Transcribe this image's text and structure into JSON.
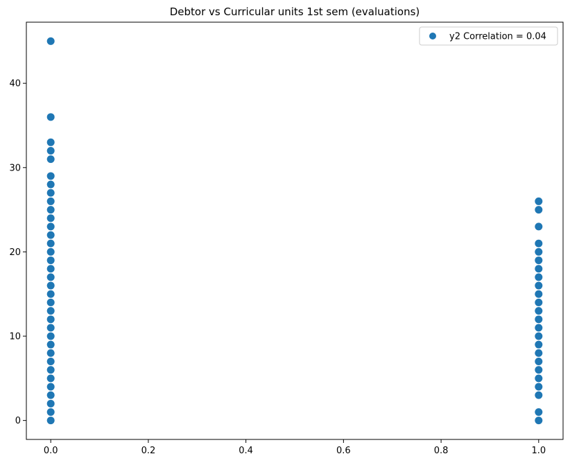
{
  "chart_data": {
    "type": "scatter",
    "title": "Debtor vs Curricular units 1st sem (evaluations)",
    "xlabel": "",
    "ylabel": "",
    "xlim": [
      -0.05,
      1.05
    ],
    "ylim": [
      -2.25,
      47.25
    ],
    "x_ticks": [
      0.0,
      0.2,
      0.4,
      0.6,
      0.8,
      1.0
    ],
    "x_tick_labels": [
      "0.0",
      "0.2",
      "0.4",
      "0.6",
      "0.8",
      "1.0"
    ],
    "y_ticks": [
      0,
      10,
      20,
      30,
      40
    ],
    "y_tick_labels": [
      "0",
      "10",
      "20",
      "30",
      "40"
    ],
    "grid": false,
    "legend_position": "top-right",
    "series": [
      {
        "name": "y2 Correlation = 0.04",
        "color": "#1f77b4",
        "points": [
          {
            "x": 0,
            "y": 0
          },
          {
            "x": 0,
            "y": 1
          },
          {
            "x": 0,
            "y": 2
          },
          {
            "x": 0,
            "y": 3
          },
          {
            "x": 0,
            "y": 4
          },
          {
            "x": 0,
            "y": 5
          },
          {
            "x": 0,
            "y": 6
          },
          {
            "x": 0,
            "y": 7
          },
          {
            "x": 0,
            "y": 8
          },
          {
            "x": 0,
            "y": 9
          },
          {
            "x": 0,
            "y": 10
          },
          {
            "x": 0,
            "y": 11
          },
          {
            "x": 0,
            "y": 12
          },
          {
            "x": 0,
            "y": 13
          },
          {
            "x": 0,
            "y": 14
          },
          {
            "x": 0,
            "y": 15
          },
          {
            "x": 0,
            "y": 16
          },
          {
            "x": 0,
            "y": 17
          },
          {
            "x": 0,
            "y": 18
          },
          {
            "x": 0,
            "y": 19
          },
          {
            "x": 0,
            "y": 20
          },
          {
            "x": 0,
            "y": 21
          },
          {
            "x": 0,
            "y": 22
          },
          {
            "x": 0,
            "y": 23
          },
          {
            "x": 0,
            "y": 24
          },
          {
            "x": 0,
            "y": 25
          },
          {
            "x": 0,
            "y": 26
          },
          {
            "x": 0,
            "y": 27
          },
          {
            "x": 0,
            "y": 28
          },
          {
            "x": 0,
            "y": 29
          },
          {
            "x": 0,
            "y": 31
          },
          {
            "x": 0,
            "y": 32
          },
          {
            "x": 0,
            "y": 33
          },
          {
            "x": 0,
            "y": 36
          },
          {
            "x": 0,
            "y": 45
          },
          {
            "x": 1,
            "y": 0
          },
          {
            "x": 1,
            "y": 1
          },
          {
            "x": 1,
            "y": 3
          },
          {
            "x": 1,
            "y": 4
          },
          {
            "x": 1,
            "y": 5
          },
          {
            "x": 1,
            "y": 6
          },
          {
            "x": 1,
            "y": 7
          },
          {
            "x": 1,
            "y": 8
          },
          {
            "x": 1,
            "y": 9
          },
          {
            "x": 1,
            "y": 10
          },
          {
            "x": 1,
            "y": 11
          },
          {
            "x": 1,
            "y": 12
          },
          {
            "x": 1,
            "y": 13
          },
          {
            "x": 1,
            "y": 14
          },
          {
            "x": 1,
            "y": 15
          },
          {
            "x": 1,
            "y": 16
          },
          {
            "x": 1,
            "y": 17
          },
          {
            "x": 1,
            "y": 18
          },
          {
            "x": 1,
            "y": 19
          },
          {
            "x": 1,
            "y": 20
          },
          {
            "x": 1,
            "y": 21
          },
          {
            "x": 1,
            "y": 23
          },
          {
            "x": 1,
            "y": 25
          },
          {
            "x": 1,
            "y": 26
          }
        ]
      }
    ]
  }
}
